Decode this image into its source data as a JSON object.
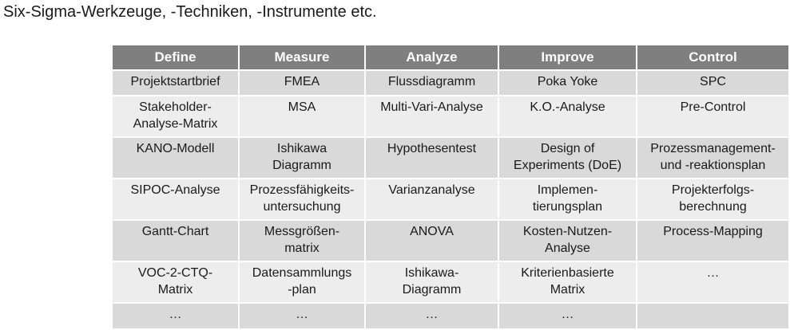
{
  "title": "Six-Sigma-Werkzeuge, -Techniken, -Instrumente etc.",
  "table": {
    "headers": [
      "Define",
      "Measure",
      "Analyze",
      "Improve",
      "Control"
    ],
    "rows": [
      [
        "Projektstartbrief",
        "FMEA",
        "Flussdiagramm",
        "Poka Yoke",
        "SPC"
      ],
      [
        "Stakeholder-\nAnalyse-Matrix",
        "MSA",
        "Multi-Vari-Analyse",
        "K.O.-Analyse",
        "Pre-Control"
      ],
      [
        "KANO-Modell",
        "Ishikawa\nDiagramm",
        "Hypothesentest",
        "Design of\nExperiments (DoE)",
        "Prozessmanagement-\nund -reaktionsplan"
      ],
      [
        "SIPOC-Analyse",
        "Prozessfähigkeits-\nuntersuchung",
        "Varianzanalyse",
        "Implemen-\ntierungsplan",
        "Projekterfolgs-\nberechnung"
      ],
      [
        "Gantt-Chart",
        "Messgrößen-\nmatrix",
        "ANOVA",
        "Kosten-Nutzen-\nAnalyse",
        "Process-Mapping"
      ],
      [
        "VOC-2-CTQ-\nMatrix",
        "Datensammlungs\n-plan",
        "Ishikawa-\nDiagramm",
        "Kriterienbasierte\nMatrix",
        "…"
      ],
      [
        "…",
        "…",
        "…",
        "…",
        ""
      ]
    ]
  }
}
